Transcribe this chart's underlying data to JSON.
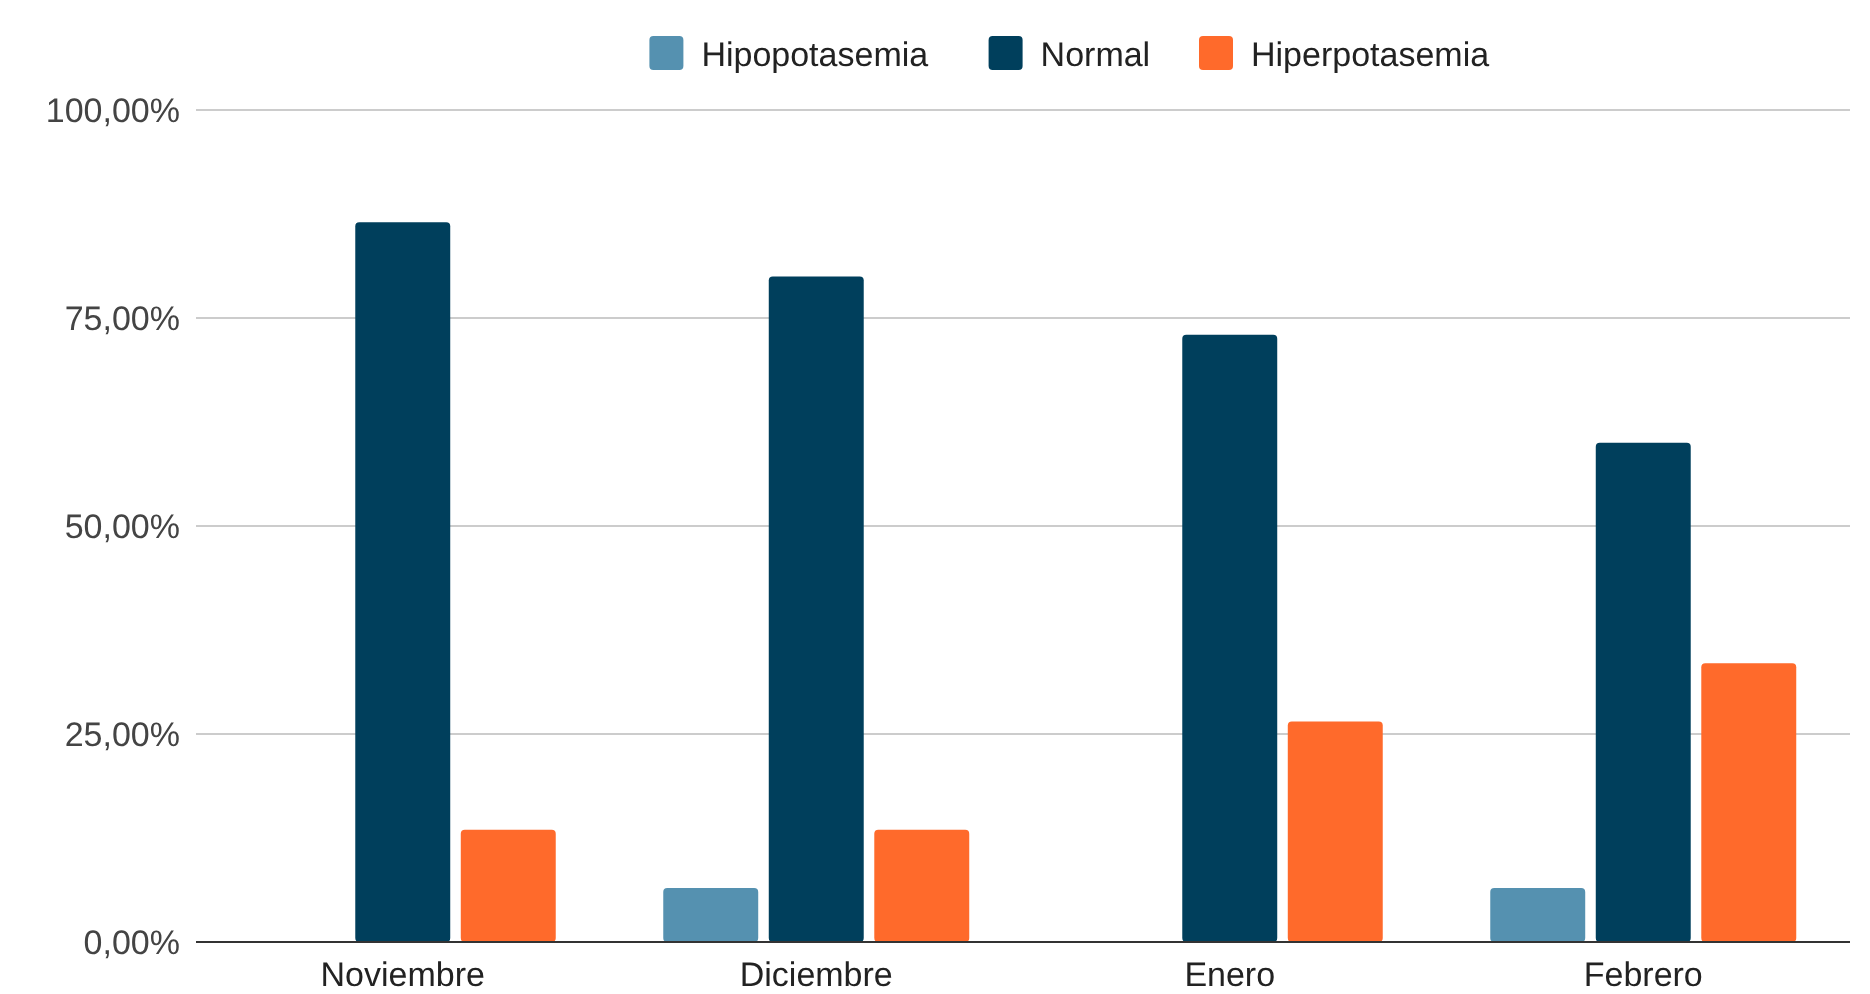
{
  "chart_data": {
    "type": "bar",
    "categories": [
      "Noviembre",
      "Diciembre",
      "Enero",
      "Febrero"
    ],
    "series": [
      {
        "name": "Hipopotasemia",
        "color": "#5591b0",
        "values": [
          0,
          6.5,
          0,
          6.5
        ]
      },
      {
        "name": "Normal",
        "color": "#003f5c",
        "values": [
          86.5,
          80,
          73,
          60
        ]
      },
      {
        "name": "Hiperpotasemia",
        "color": "#ff6a2b",
        "values": [
          13.5,
          13.5,
          26.5,
          33.5
        ]
      }
    ],
    "ylim": [
      0,
      100
    ],
    "yticks": [
      {
        "value": 0,
        "label": "0,00%"
      },
      {
        "value": 25,
        "label": "25,00%"
      },
      {
        "value": 50,
        "label": "50,00%"
      },
      {
        "value": 75,
        "label": "75,00%"
      },
      {
        "value": 100,
        "label": "100,00%"
      }
    ],
    "grid": "y",
    "legend": "top"
  }
}
